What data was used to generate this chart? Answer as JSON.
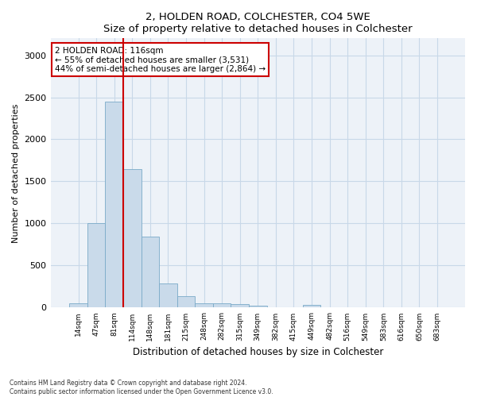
{
  "title1": "2, HOLDEN ROAD, COLCHESTER, CO4 5WE",
  "title2": "Size of property relative to detached houses in Colchester",
  "xlabel": "Distribution of detached houses by size in Colchester",
  "ylabel": "Number of detached properties",
  "categories": [
    "14sqm",
    "47sqm",
    "81sqm",
    "114sqm",
    "148sqm",
    "181sqm",
    "215sqm",
    "248sqm",
    "282sqm",
    "315sqm",
    "349sqm",
    "382sqm",
    "415sqm",
    "449sqm",
    "482sqm",
    "516sqm",
    "549sqm",
    "583sqm",
    "616sqm",
    "650sqm",
    "683sqm"
  ],
  "values": [
    55,
    1000,
    2450,
    1650,
    840,
    290,
    140,
    50,
    50,
    40,
    20,
    5,
    0,
    30,
    0,
    0,
    0,
    0,
    0,
    0,
    0
  ],
  "bar_color": "#c9daea",
  "bar_edge_color": "#7aaac8",
  "red_line_index": 2,
  "annotation_text": "2 HOLDEN ROAD: 116sqm\n← 55% of detached houses are smaller (3,531)\n44% of semi-detached houses are larger (2,864) →",
  "annotation_box_color": "#ffffff",
  "annotation_border_color": "#cc0000",
  "red_line_color": "#cc0000",
  "ylim": [
    0,
    3200
  ],
  "yticks": [
    0,
    500,
    1000,
    1500,
    2000,
    2500,
    3000
  ],
  "grid_color": "#c8d8e8",
  "bg_color": "#edf2f8",
  "footer1": "Contains HM Land Registry data © Crown copyright and database right 2024.",
  "footer2": "Contains public sector information licensed under the Open Government Licence v3.0."
}
